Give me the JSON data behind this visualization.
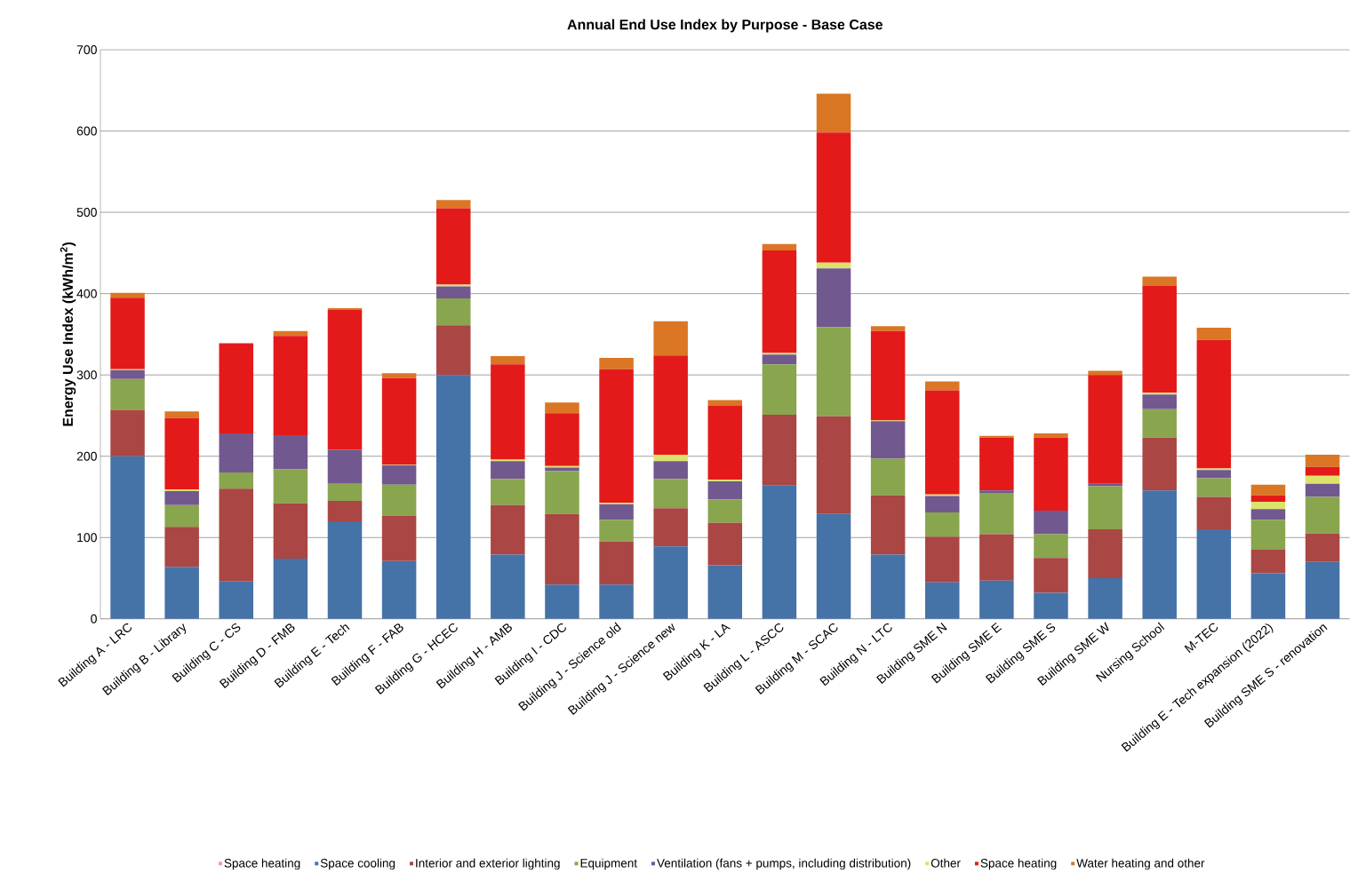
{
  "chart_data": {
    "type": "bar",
    "title": "Annual End Use Index by Purpose - Base Case",
    "ylabel": "Energy Use Index (kWh/m$^{2}$)",
    "categories": [
      "Building A - LRC",
      "Building B - Library",
      "Building C - CS",
      "Building D - FMB",
      "Building E - Tech",
      "Building F - FAB",
      "Building G - HCEC",
      "Building H - AMB",
      "Building I - CDC",
      "Building J - Science old",
      "Building J - Science new",
      "Building K - LA",
      "Building L - ASCC",
      "Building M - SCAC",
      "Building N - LTC",
      "Building SME N",
      "Building SME E",
      "Building SME S",
      "Building SME W",
      "Nursing School",
      "M-TEC",
      "Building E - Tech expansion (2022)",
      "Building SME S - renovation"
    ],
    "stacked": true,
    "ylim": [
      0,
      700
    ],
    "yticks": [
      0,
      100,
      200,
      300,
      400,
      500,
      600,
      700
    ],
    "grid": "y",
    "legend": "bottom",
    "series": [
      {
        "name": "Space heating",
        "color": "#e6a0a0",
        "values": [
          0,
          0,
          0,
          0,
          0,
          0,
          0,
          0,
          0,
          0,
          0,
          0,
          0,
          0,
          0,
          0,
          0,
          0,
          0,
          0,
          0,
          0,
          0
        ]
      },
      {
        "name": "Space cooling",
        "color": "#4572a7",
        "values": [
          200,
          64,
          46,
          74,
          120,
          71,
          300,
          79,
          42,
          42,
          89,
          66,
          164,
          129,
          79,
          45,
          47,
          32,
          50,
          158,
          110,
          56,
          70
        ]
      },
      {
        "name": "Interior and exterior lighting",
        "color": "#aa4643",
        "values": [
          57,
          49,
          114,
          68,
          25,
          56,
          61,
          61,
          87,
          53,
          47,
          52,
          87,
          120,
          73,
          56,
          57,
          43,
          60,
          65,
          40,
          29,
          35
        ]
      },
      {
        "name": "Equipment",
        "color": "#89a54e",
        "values": [
          38,
          27,
          20,
          42,
          21,
          38,
          33,
          32,
          53,
          27,
          36,
          29,
          62,
          110,
          45,
          30,
          51,
          29,
          53,
          35,
          23,
          37,
          45
        ]
      },
      {
        "name": "Ventilation (fans + pumps, including distribution)",
        "color": "#71588f",
        "values": [
          11,
          17,
          48,
          42,
          42,
          24,
          15,
          22,
          4,
          19,
          22,
          22,
          12,
          72,
          46,
          20,
          3,
          29,
          3,
          18,
          10,
          13,
          16
        ]
      },
      {
        "name": "Other",
        "color": "#dbe36b",
        "values": [
          1,
          2,
          0,
          0,
          0,
          1,
          2,
          2,
          2,
          2,
          8,
          2,
          2,
          7,
          1,
          2,
          0,
          0,
          0,
          2,
          2,
          9,
          10
        ]
      },
      {
        "name": "Space heating",
        "color": "#e41a1a",
        "values": [
          88,
          88,
          111,
          122,
          172,
          106,
          94,
          117,
          65,
          164,
          122,
          91,
          126,
          160,
          110,
          128,
          65,
          90,
          134,
          132,
          158,
          8,
          11
        ]
      },
      {
        "name": "Water heating and other",
        "color": "#db7624",
        "values": [
          6,
          8,
          0,
          6,
          2,
          6,
          10,
          10,
          13,
          14,
          42,
          7,
          8,
          48,
          6,
          11,
          2,
          5,
          5,
          11,
          15,
          13,
          15
        ]
      }
    ]
  }
}
